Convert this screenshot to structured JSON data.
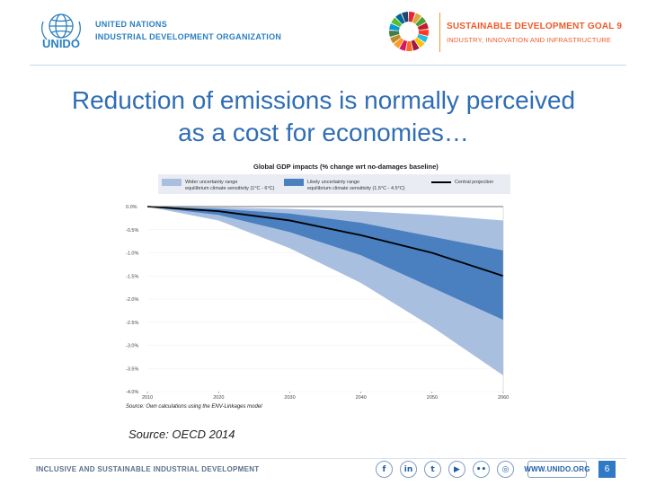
{
  "header": {
    "org_line1": "UNITED NATIONS",
    "org_line2": "INDUSTRIAL DEVELOPMENT ORGANIZATION",
    "logo_text": "UNIDO",
    "sdg_title": "SUSTAINABLE DEVELOPMENT",
    "sdg_goal": "GOAL 9",
    "sdg_subtitle": "INDUSTRY, INNOVATION AND INFRASTRUCTURE"
  },
  "slide": {
    "title_line1": "Reduction of emissions is normally perceived",
    "title_line2": "as a cost for economies…",
    "source": "Source: OECD 2014"
  },
  "chart_data": {
    "type": "area",
    "title": "Global GDP impacts (% change wrt no-damages baseline)",
    "xlabel": "",
    "ylabel": "",
    "ylim": [
      -4.0,
      0.0
    ],
    "x": [
      2010,
      2020,
      2030,
      2040,
      2050,
      2060
    ],
    "x_ticks": [
      "2010",
      "2020",
      "2030",
      "2040",
      "2050",
      "2060"
    ],
    "y_ticks": [
      {
        "value": 0.0,
        "label": "0.0%"
      },
      {
        "value": -0.5,
        "label": "-0.5%"
      },
      {
        "value": -1.0,
        "label": "-1.0%"
      },
      {
        "value": -1.5,
        "label": "-1.5%"
      },
      {
        "value": -2.0,
        "label": "-2.0%"
      },
      {
        "value": -2.5,
        "label": "-2.5%"
      },
      {
        "value": -3.0,
        "label": "-3.0%"
      },
      {
        "value": -3.5,
        "label": "-3.5%"
      },
      {
        "value": -4.0,
        "label": "-4.0%"
      }
    ],
    "legend": [
      {
        "label_line1": "Wider uncertainty range",
        "label_line2": "equilibrium climate sensitivity (1°C - 6°C)",
        "color": "#a9bfe0"
      },
      {
        "label_line1": "Likely uncertainty range",
        "label_line2": "equilibrium climate sensitivity (1.5°C - 4.5°C)",
        "color": "#4a7fc0"
      },
      {
        "label_line1": "Central projection",
        "label_line2": "",
        "color": "#000000"
      }
    ],
    "series": [
      {
        "name": "Wider range upper",
        "values": [
          0.0,
          -0.02,
          -0.05,
          -0.1,
          -0.18,
          -0.3
        ]
      },
      {
        "name": "Likely range upper",
        "values": [
          0.0,
          -0.05,
          -0.15,
          -0.35,
          -0.65,
          -0.95
        ]
      },
      {
        "name": "Central projection",
        "values": [
          0.0,
          -0.1,
          -0.3,
          -0.62,
          -1.0,
          -1.5
        ]
      },
      {
        "name": "Likely range lower",
        "values": [
          0.0,
          -0.18,
          -0.55,
          -1.05,
          -1.75,
          -2.45
        ]
      },
      {
        "name": "Wider range lower",
        "values": [
          0.0,
          -0.3,
          -0.9,
          -1.65,
          -2.6,
          -3.65
        ]
      }
    ],
    "source_note": "Source: Own calculations using the ENV-Linkages model"
  },
  "footer": {
    "tagline": "INCLUSIVE AND SUSTAINABLE INDUSTRIAL DEVELOPMENT",
    "social": [
      {
        "icon": "facebook-icon",
        "glyph": "f"
      },
      {
        "icon": "linkedin-icon",
        "glyph": "in"
      },
      {
        "icon": "twitter-icon",
        "glyph": "t"
      },
      {
        "icon": "youtube-icon",
        "glyph": "▶"
      },
      {
        "icon": "flickr-icon",
        "glyph": "••"
      },
      {
        "icon": "instagram-icon",
        "glyph": "◎"
      }
    ],
    "website": "WWW.UNIDO.ORG",
    "page_number": "6"
  },
  "colors": {
    "title_blue": "#2f6db5",
    "unido_blue": "#2a7fc1",
    "sdg_orange": "#f15a29",
    "wide_band": "#a9bfe0",
    "likely_band": "#4a7fc0"
  }
}
